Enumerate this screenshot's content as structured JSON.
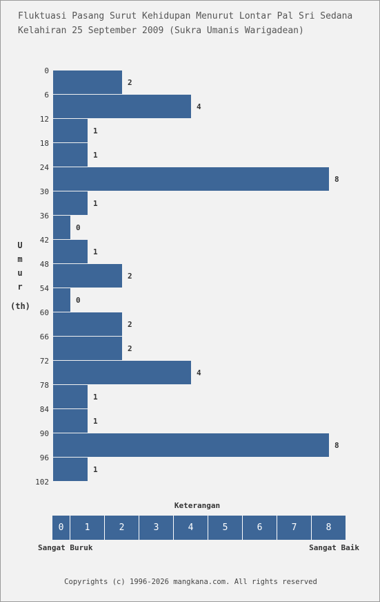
{
  "title_line1": "Fluktuasi Pasang Surut Kehidupan Menurut Lontar Pal Sri Sedana",
  "title_line2": "Kelahiran 25 September 2009 (Sukra Umanis Warigadean)",
  "y_axis_label_chars": [
    "U",
    "m",
    "u",
    "r"
  ],
  "y_axis_unit": "(th)",
  "legend": {
    "title": "Keterangan",
    "scale": [
      "0",
      "1",
      "2",
      "3",
      "4",
      "5",
      "6",
      "7",
      "8"
    ],
    "low_label": "Sangat Buruk",
    "high_label": "Sangat Baik"
  },
  "copyright": "Copyrights (c) 1996-2026 mangkana.com. All rights reserved",
  "colors": {
    "bar": "#3d6697",
    "background": "#f2f2f2",
    "border": "#9a9a9a"
  },
  "chart_data": {
    "type": "bar",
    "orientation": "horizontal",
    "title": "Fluktuasi Pasang Surut Kehidupan Menurut Lontar Pal Sri Sedana Kelahiran 25 September 2009 (Sukra Umanis Warigadean)",
    "ylabel": "Umur (th)",
    "xlabel": "",
    "y_ticks": [
      0,
      6,
      12,
      18,
      24,
      30,
      36,
      42,
      48,
      54,
      60,
      66,
      72,
      78,
      84,
      90,
      96,
      102
    ],
    "categories": [
      "0",
      "6",
      "12",
      "18",
      "24",
      "30",
      "36",
      "42",
      "48",
      "54",
      "60",
      "66",
      "72",
      "78",
      "84",
      "90",
      "96"
    ],
    "values": [
      2,
      4,
      1,
      1,
      8,
      1,
      0,
      1,
      2,
      0,
      2,
      2,
      4,
      1,
      1,
      8,
      1
    ],
    "xlim": [
      0,
      8
    ],
    "grid": false,
    "legend": "none"
  }
}
